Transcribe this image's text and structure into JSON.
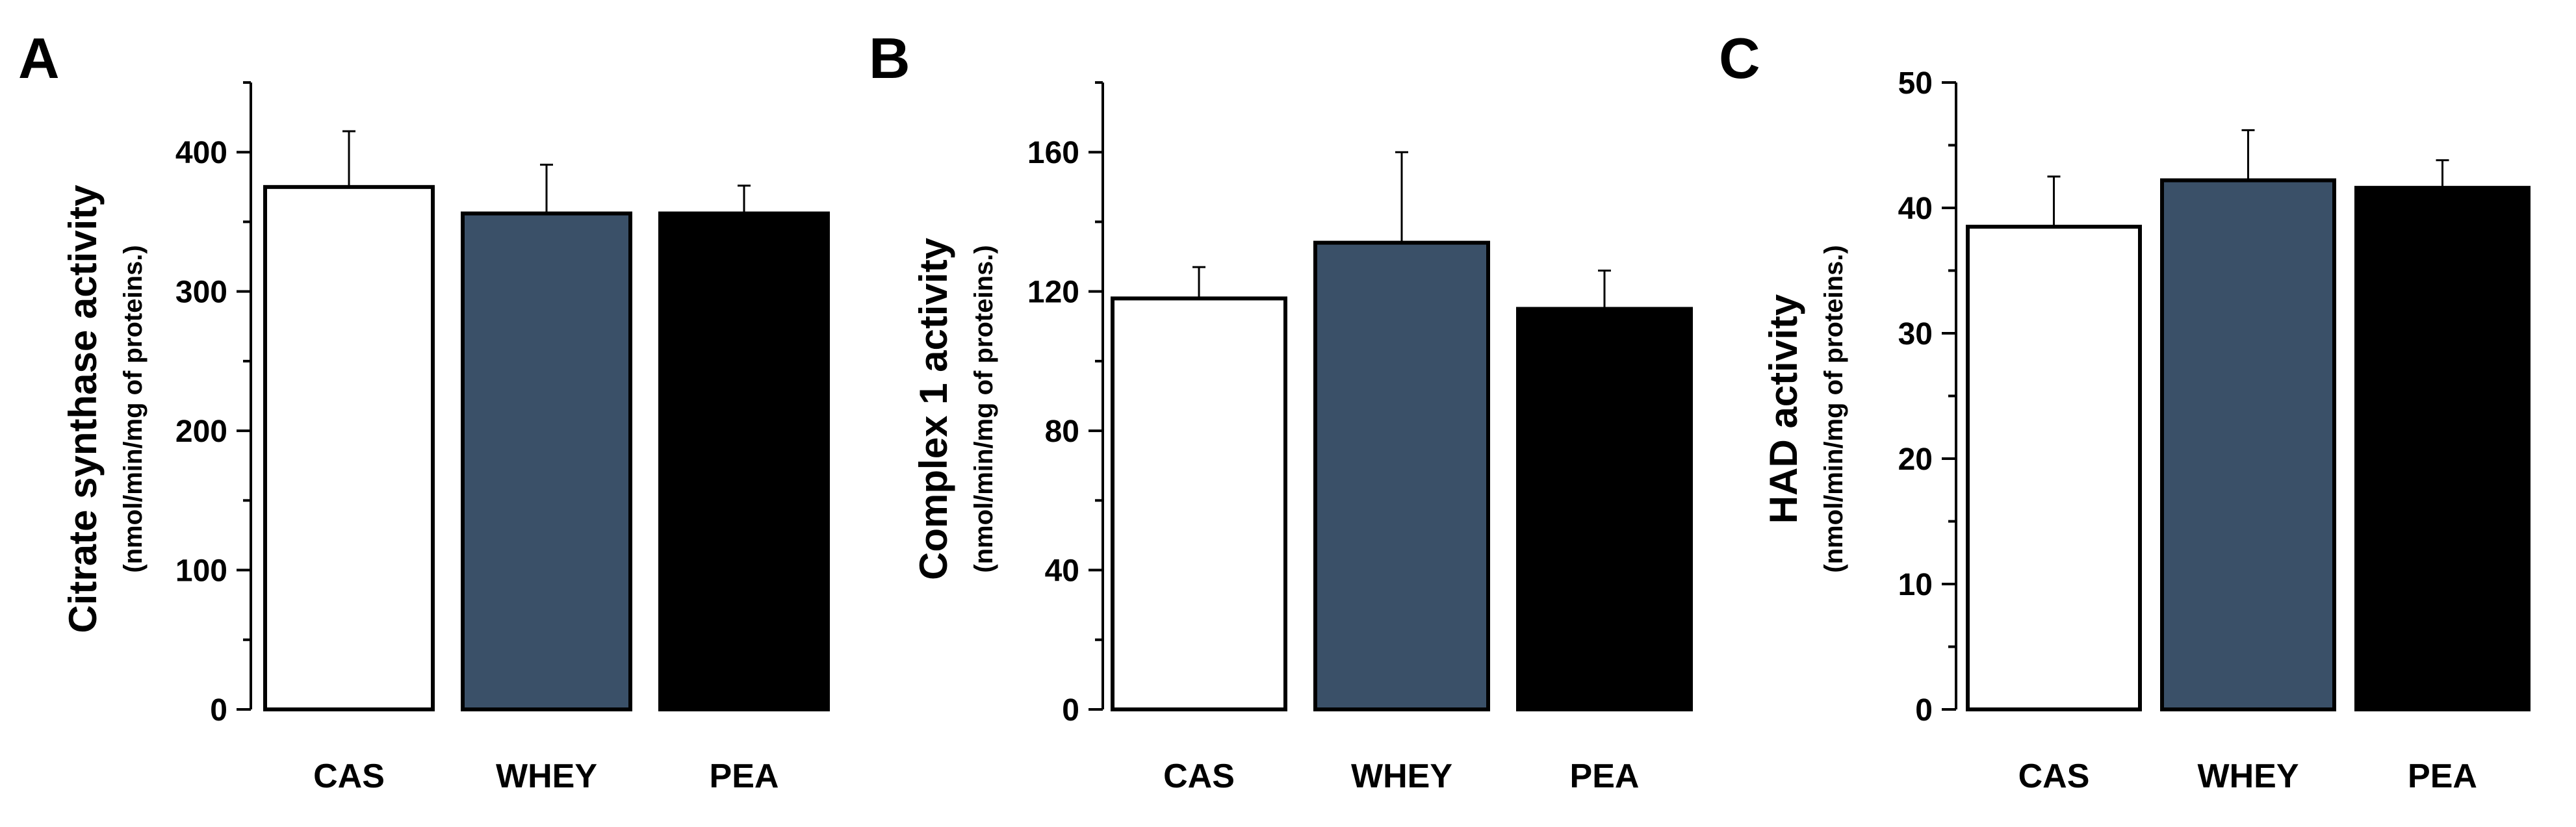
{
  "chart_data": [
    {
      "type": "bar",
      "panel": "A",
      "categories": [
        "CAS",
        "WHEY",
        "PEA"
      ],
      "values": [
        375,
        356,
        356
      ],
      "errors": [
        40,
        35,
        20
      ],
      "colors": [
        "#ffffff",
        "#3a5068",
        "#000000"
      ],
      "ylabel": "Citrate synthase activity",
      "ylabel_units": "(nmol/min/mg of proteins.)",
      "ylim": [
        0,
        450
      ],
      "yticks": [
        0,
        100,
        200,
        300,
        400
      ],
      "minor_yticks": [
        50,
        150,
        250,
        350,
        450
      ]
    },
    {
      "type": "bar",
      "panel": "B",
      "categories": [
        "CAS",
        "WHEY",
        "PEA"
      ],
      "values": [
        118,
        134,
        115
      ],
      "errors": [
        9,
        26,
        11
      ],
      "colors": [
        "#ffffff",
        "#3a5068",
        "#000000"
      ],
      "ylabel": "Complex 1 activity",
      "ylabel_units": "(nmol/min/mg of proteins.)",
      "ylim": [
        0,
        180
      ],
      "yticks": [
        0,
        40,
        80,
        120,
        160
      ],
      "minor_yticks": [
        20,
        60,
        100,
        140,
        180
      ]
    },
    {
      "type": "bar",
      "panel": "C",
      "categories": [
        "CAS",
        "WHEY",
        "PEA"
      ],
      "values": [
        38.5,
        42.2,
        41.6
      ],
      "errors": [
        4,
        4,
        2.2
      ],
      "colors": [
        "#ffffff",
        "#3a5068",
        "#000000"
      ],
      "ylabel": "HAD activity",
      "ylabel_units": "(nmol/min/mg of proteins.)",
      "ylim": [
        0,
        50
      ],
      "yticks": [
        0,
        10,
        20,
        30,
        40,
        50
      ],
      "minor_yticks": [
        5,
        15,
        25,
        35,
        45
      ]
    }
  ]
}
